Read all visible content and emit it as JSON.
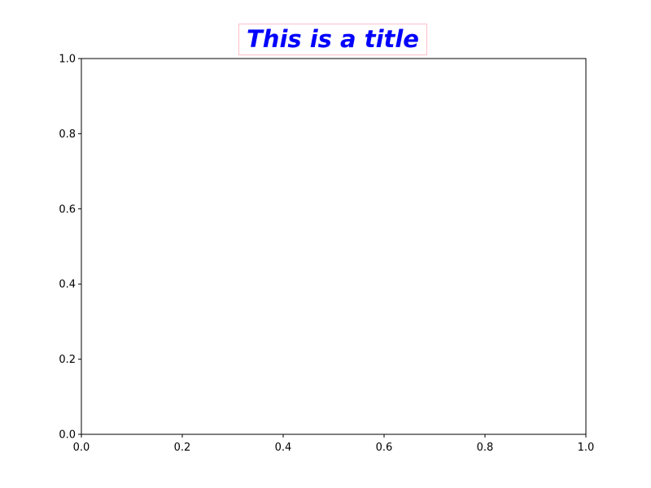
{
  "chart_data": {
    "type": "line",
    "title": "This is a title",
    "title_color": "#0000ff",
    "title_box_edge_color": "#ffc0cb",
    "xlabel": "",
    "ylabel": "",
    "xlim": [
      0.0,
      1.0
    ],
    "ylim": [
      0.0,
      1.0
    ],
    "xticks": [
      "0.0",
      "0.2",
      "0.4",
      "0.6",
      "0.8",
      "1.0"
    ],
    "yticks": [
      "0.0",
      "0.2",
      "0.4",
      "0.6",
      "0.8",
      "1.0"
    ],
    "grid": false,
    "series": []
  }
}
